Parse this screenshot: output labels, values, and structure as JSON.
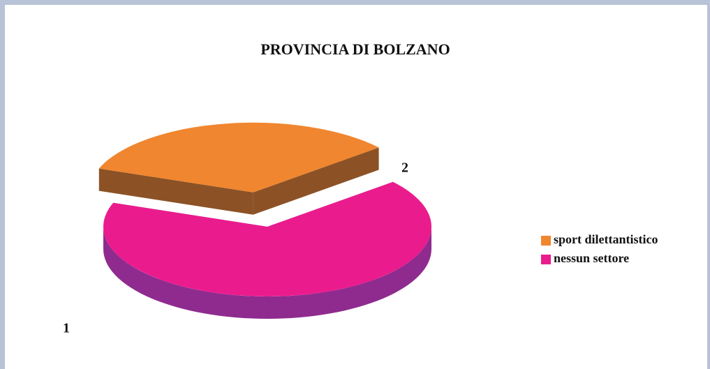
{
  "chart_data": {
    "type": "pie",
    "title": "PROVINCIA DI BOLZANO",
    "categories": [
      "sport dilettantistico",
      "nessun settore"
    ],
    "values": [
      1,
      2
    ],
    "colors": [
      "#f0862f",
      "#ea1c8d"
    ],
    "side_colors": [
      "#8c5226",
      "#8f2b8f"
    ],
    "exploded": [
      true,
      false
    ],
    "legend": "right"
  }
}
